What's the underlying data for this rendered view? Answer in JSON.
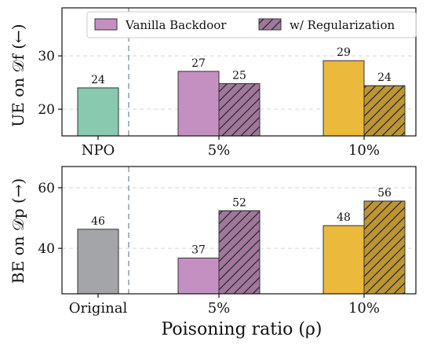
{
  "chart_data": [
    {
      "type": "bar",
      "panel": "top",
      "ylabel": "UE on 𝒟f (←)",
      "ylim": [
        15,
        39
      ],
      "yticks": [
        20,
        30
      ],
      "categories": [
        "NPO",
        "5%",
        "10%"
      ],
      "grid": "horizontal dashed",
      "legend": {
        "placement": "top-right",
        "entries": [
          "Vanilla Backdoor",
          "w/ Regularization"
        ]
      },
      "bars": [
        {
          "category": "NPO",
          "variant": "base",
          "value": 24,
          "label": "24",
          "color": "#88c9b0",
          "hatch": false
        },
        {
          "category": "5%",
          "variant": "Vanilla Backdoor",
          "value": 27.1,
          "label": "27",
          "color": "#c490c1",
          "hatch": false
        },
        {
          "category": "5%",
          "variant": "w/ Regularization",
          "value": 24.8,
          "label": "25",
          "color": "#a0779b",
          "hatch": true
        },
        {
          "category": "10%",
          "variant": "Vanilla Backdoor",
          "value": 29.1,
          "label": "29",
          "color": "#ebb93b",
          "hatch": false
        },
        {
          "category": "10%",
          "variant": "w/ Regularization",
          "value": 24.4,
          "label": "24",
          "color": "#bd9533",
          "hatch": true
        }
      ]
    },
    {
      "type": "bar",
      "panel": "bottom",
      "ylabel": "BE on 𝒟p (→)",
      "ylim": [
        25,
        67
      ],
      "yticks": [
        40,
        60
      ],
      "categories": [
        "Original",
        "5%",
        "10%"
      ],
      "xlabel": "Poisoning ratio (ρ)",
      "grid": "horizontal dashed",
      "bars": [
        {
          "category": "Original",
          "variant": "base",
          "value": 46.3,
          "label": "46",
          "color": "#a4a5a8",
          "hatch": false
        },
        {
          "category": "5%",
          "variant": "Vanilla Backdoor",
          "value": 36.8,
          "label": "37",
          "color": "#c490c1",
          "hatch": false
        },
        {
          "category": "5%",
          "variant": "w/ Regularization",
          "value": 52.4,
          "label": "52",
          "color": "#a0779b",
          "hatch": true
        },
        {
          "category": "10%",
          "variant": "Vanilla Backdoor",
          "value": 47.5,
          "label": "48",
          "color": "#ebb93b",
          "hatch": false
        },
        {
          "category": "10%",
          "variant": "w/ Regularization",
          "value": 55.6,
          "label": "56",
          "color": "#bd9533",
          "hatch": true
        }
      ]
    }
  ]
}
